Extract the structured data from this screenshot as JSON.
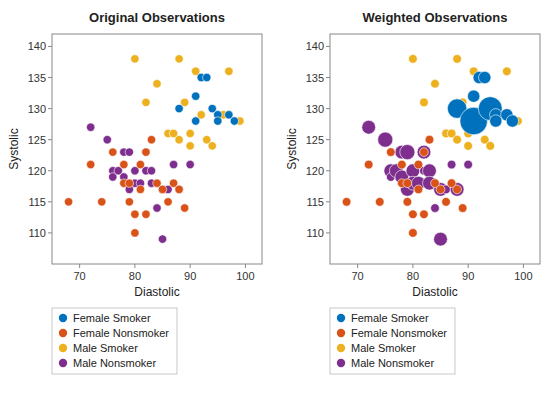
{
  "chart_data": [
    {
      "type": "scatter",
      "title": "Original Observations",
      "xlabel": "Diastolic",
      "ylabel": "Systolic",
      "xlim": [
        65,
        103
      ],
      "ylim": [
        105,
        142
      ],
      "xticks": [
        70,
        80,
        90,
        100
      ],
      "yticks": [
        110,
        115,
        120,
        125,
        130,
        135,
        140
      ],
      "grid": false,
      "legend": "bottom",
      "series": [
        {
          "name": "Female Smoker",
          "color": "#0072BD",
          "x": [
            88,
            91,
            91,
            92,
            93,
            94,
            95,
            95,
            97,
            98
          ],
          "values": [
            130,
            132,
            128,
            135,
            135,
            130,
            129,
            128,
            129,
            128
          ]
        },
        {
          "name": "Female Nonsmoker",
          "color": "#D95319",
          "x": [
            68,
            72,
            74,
            76,
            78,
            78,
            79,
            79,
            80,
            80,
            81,
            81,
            82,
            82,
            83,
            84,
            85,
            86,
            87,
            88,
            89
          ],
          "values": [
            115,
            121,
            115,
            123,
            121,
            118,
            115,
            118,
            113,
            110,
            117,
            121,
            113,
            123,
            125,
            118,
            117,
            115,
            118,
            117,
            114
          ]
        },
        {
          "name": "Male Smoker",
          "color": "#EDB120",
          "x": [
            80,
            82,
            84,
            86,
            87,
            88,
            88,
            89,
            90,
            90,
            91,
            92,
            93,
            94,
            95,
            96,
            97,
            99
          ],
          "values": [
            138,
            131,
            134,
            126,
            126,
            138,
            125,
            131,
            124,
            126,
            136,
            129,
            125,
            124,
            128,
            129,
            136,
            128
          ]
        },
        {
          "name": "Male Nonsmoker",
          "color": "#7E2F8E",
          "x": [
            72,
            75,
            76,
            76,
            77,
            78,
            78,
            79,
            79,
            80,
            80,
            81,
            82,
            82,
            83,
            83,
            84,
            85,
            85,
            86,
            87,
            88,
            90
          ],
          "values": [
            127,
            125,
            120,
            119,
            120,
            123,
            119,
            123,
            117,
            120,
            118,
            118,
            123,
            120,
            120,
            118,
            114,
            117,
            109,
            117,
            121,
            117,
            121
          ]
        }
      ]
    },
    {
      "type": "scatter",
      "title": "Weighted Observations",
      "xlabel": "Diastolic",
      "ylabel": "Systolic",
      "xlim": [
        65,
        103
      ],
      "ylim": [
        105,
        142
      ],
      "xticks": [
        70,
        80,
        90,
        100
      ],
      "yticks": [
        110,
        115,
        120,
        125,
        130,
        135,
        140
      ],
      "grid": false,
      "legend": "bottom",
      "series": [
        {
          "name": "Female Smoker",
          "color": "#0072BD",
          "x": [
            88,
            91,
            91,
            92,
            93,
            94,
            95,
            95,
            97,
            98
          ],
          "values": [
            130,
            132,
            128,
            135,
            135,
            130,
            129,
            128,
            129,
            128
          ],
          "sizes": [
            200,
            80,
            400,
            80,
            80,
            300,
            80,
            80,
            80,
            80
          ]
        },
        {
          "name": "Female Nonsmoker",
          "color": "#D95319",
          "x": [
            68,
            72,
            74,
            76,
            78,
            78,
            79,
            79,
            80,
            80,
            81,
            81,
            82,
            82,
            83,
            84,
            85,
            86,
            87,
            88,
            89
          ],
          "values": [
            115,
            121,
            115,
            123,
            121,
            118,
            115,
            118,
            113,
            110,
            117,
            121,
            113,
            123,
            125,
            118,
            117,
            115,
            118,
            117,
            114
          ],
          "sizes": [
            40,
            40,
            40,
            40,
            40,
            40,
            40,
            40,
            40,
            40,
            40,
            40,
            40,
            40,
            40,
            40,
            40,
            40,
            40,
            40,
            40
          ]
        },
        {
          "name": "Male Smoker",
          "color": "#EDB120",
          "x": [
            80,
            82,
            84,
            86,
            87,
            88,
            88,
            89,
            90,
            90,
            91,
            92,
            93,
            94,
            95,
            96,
            97,
            99
          ],
          "values": [
            138,
            131,
            134,
            126,
            126,
            138,
            125,
            131,
            124,
            126,
            136,
            129,
            125,
            124,
            128,
            129,
            136,
            128
          ],
          "sizes": [
            40,
            40,
            40,
            40,
            40,
            40,
            40,
            40,
            40,
            40,
            40,
            40,
            40,
            40,
            40,
            40,
            40,
            40
          ]
        },
        {
          "name": "Male Nonsmoker",
          "color": "#7E2F8E",
          "x": [
            72,
            75,
            76,
            76,
            77,
            78,
            78,
            79,
            79,
            80,
            80,
            81,
            82,
            82,
            83,
            83,
            84,
            85,
            85,
            86,
            87,
            88,
            90
          ],
          "values": [
            127,
            125,
            120,
            119,
            120,
            123,
            119,
            123,
            117,
            120,
            118,
            118,
            123,
            120,
            120,
            118,
            114,
            117,
            109,
            117,
            121,
            117,
            121
          ],
          "sizes": [
            100,
            120,
            100,
            40,
            100,
            100,
            100,
            120,
            100,
            100,
            100,
            100,
            100,
            40,
            100,
            100,
            40,
            100,
            100,
            40,
            40,
            100,
            40
          ]
        }
      ]
    }
  ]
}
